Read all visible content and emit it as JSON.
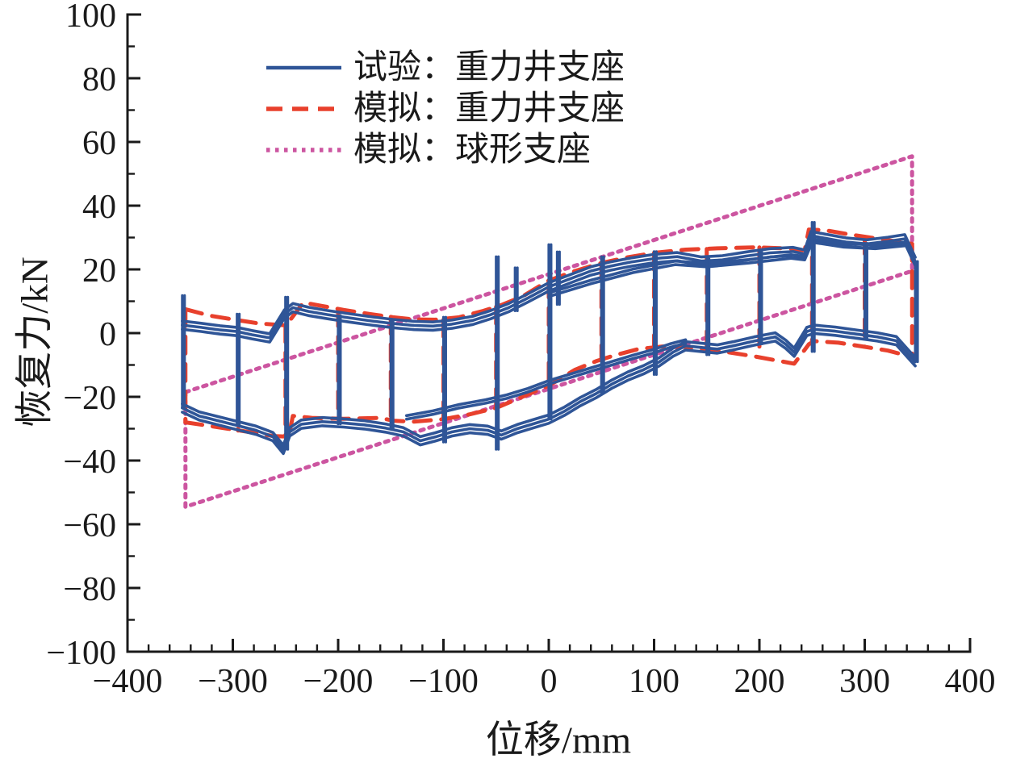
{
  "chart_data": {
    "type": "line",
    "title": "",
    "xlabel": "位移/mm",
    "ylabel": "恢复力/kN",
    "xlim": [
      -400,
      400
    ],
    "ylim": [
      -100,
      100
    ],
    "x_major_ticks": [
      -400,
      -300,
      -200,
      -100,
      0,
      100,
      200,
      300,
      400
    ],
    "x_minor_step": 20,
    "y_major_ticks": [
      -100,
      -80,
      -60,
      -40,
      -20,
      0,
      20,
      40,
      60,
      80,
      100
    ],
    "y_minor_step": 10,
    "grid": false,
    "legend_position": "upper-left-inside",
    "colors": {
      "test_blue": "#2f5597",
      "sim_red": "#e8402c",
      "sim_pink": "#cc55a0",
      "axis": "#1a1a1a",
      "background": "#ffffff"
    },
    "legend": [
      {
        "label": "试验：重力井支座",
        "color_key": "test_blue",
        "style": "solid"
      },
      {
        "label": "模拟：重力井支座",
        "color_key": "sim_red",
        "style": "dashed"
      },
      {
        "label": "模拟：球形支座",
        "color_key": "sim_pink",
        "style": "dotted"
      }
    ],
    "series": [
      {
        "name": "sim-spherical-bearing-loop",
        "color_key": "sim_pink",
        "style": "dotted",
        "points": [
          [
            -345,
            -18.5
          ],
          [
            345,
            55.5
          ],
          [
            345,
            19.5
          ],
          [
            -345,
            -54.5
          ],
          [
            -345,
            -18.5
          ]
        ]
      },
      {
        "name": "sim-gravity-well-upper-envelope",
        "color_key": "sim_red",
        "style": "dashed",
        "points": [
          [
            -345,
            7.5
          ],
          [
            -322,
            5.5
          ],
          [
            -300,
            4.3
          ],
          [
            -275,
            3
          ],
          [
            -252,
            2.5
          ],
          [
            -247,
            3.5
          ],
          [
            -233,
            9.6
          ],
          [
            -215,
            8.5
          ],
          [
            -195,
            7.3
          ],
          [
            -170,
            6
          ],
          [
            -148,
            5
          ],
          [
            -128,
            4.3
          ],
          [
            -108,
            4.2
          ],
          [
            -85,
            5
          ],
          [
            -62,
            7
          ],
          [
            -45,
            8.8
          ],
          [
            -25,
            11.5
          ],
          [
            0,
            16.5
          ],
          [
            25,
            19.5
          ],
          [
            50,
            22
          ],
          [
            75,
            23.8
          ],
          [
            100,
            25.2
          ],
          [
            130,
            26.2
          ],
          [
            160,
            26.6
          ],
          [
            195,
            26.9
          ],
          [
            225,
            26.6
          ],
          [
            243,
            26
          ],
          [
            247,
            32.5
          ],
          [
            262,
            32.3
          ],
          [
            285,
            31
          ],
          [
            305,
            30
          ],
          [
            325,
            29
          ],
          [
            345,
            28
          ]
        ]
      },
      {
        "name": "sim-gravity-well-lower-envelope",
        "color_key": "sim_red",
        "style": "dashed",
        "points": [
          [
            -345,
            -28
          ],
          [
            -325,
            -29
          ],
          [
            -305,
            -30
          ],
          [
            -285,
            -31
          ],
          [
            -262,
            -32.3
          ],
          [
            -247,
            -32.5
          ],
          [
            -243,
            -26
          ],
          [
            -225,
            -26.6
          ],
          [
            -195,
            -26.9
          ],
          [
            -160,
            -26.6
          ],
          [
            -148,
            -27.5
          ],
          [
            -128,
            -27.8
          ],
          [
            -100,
            -27
          ],
          [
            -75,
            -25.5
          ],
          [
            -50,
            -23.5
          ],
          [
            -25,
            -20
          ],
          [
            0,
            -16.5
          ],
          [
            25,
            -11.5
          ],
          [
            45,
            -8.8
          ],
          [
            62,
            -7
          ],
          [
            85,
            -5
          ],
          [
            108,
            -4.2
          ],
          [
            128,
            -4.3
          ],
          [
            148,
            -5
          ],
          [
            170,
            -6
          ],
          [
            195,
            -7.3
          ],
          [
            215,
            -8.5
          ],
          [
            233,
            -9.6
          ],
          [
            247,
            -3.5
          ],
          [
            252,
            -2.5
          ],
          [
            275,
            -3
          ],
          [
            300,
            -4.3
          ],
          [
            322,
            -5.5
          ],
          [
            345,
            -7.5
          ]
        ]
      },
      {
        "name": "sim-gravity-well-reversal-drops",
        "color_key": "sim_red",
        "style": "dashed",
        "segments": [
          [
            -345,
            7.5,
            -28
          ],
          [
            -295,
            4.4,
            -30.6
          ],
          [
            -250,
            2.5,
            -32.5
          ],
          [
            -200,
            7.5,
            -26.7
          ],
          [
            -150,
            5.1,
            -27.5
          ],
          [
            -100,
            4.2,
            -27
          ],
          [
            -50,
            8.3,
            -23.5
          ],
          [
            0,
            16.5,
            -16.5
          ],
          [
            50,
            22,
            -8.5
          ],
          [
            100,
            25.2,
            -4.2
          ],
          [
            150,
            26.4,
            -5.2
          ],
          [
            200,
            26.9,
            -7.5
          ],
          [
            250,
            32.4,
            -2.5
          ],
          [
            300,
            30.2,
            -4.3
          ],
          [
            345,
            28,
            -7.5
          ]
        ]
      },
      {
        "name": "test-gravity-well-upper-envelope",
        "color_key": "test_blue",
        "style": "solid",
        "cycle_offsets_kN": [
          0,
          1.3,
          -1.3
        ],
        "points": [
          [
            -348,
            2.5
          ],
          [
            -330,
            1.8
          ],
          [
            -312,
            1
          ],
          [
            -296,
            0.5
          ],
          [
            -282,
            -0.5
          ],
          [
            -265,
            -1.5
          ],
          [
            -251,
            6
          ],
          [
            -243,
            8
          ],
          [
            -228,
            6.8
          ],
          [
            -210,
            5.8
          ],
          [
            -190,
            4.8
          ],
          [
            -168,
            3.8
          ],
          [
            -148,
            3
          ],
          [
            -128,
            2.4
          ],
          [
            -110,
            2.2
          ],
          [
            -92,
            2.8
          ],
          [
            -72,
            4
          ],
          [
            -55,
            5.8
          ],
          [
            -38,
            8
          ],
          [
            -20,
            11
          ],
          [
            0,
            14.5
          ],
          [
            20,
            17
          ],
          [
            40,
            19.5
          ],
          [
            58,
            21
          ],
          [
            78,
            22.3
          ],
          [
            100,
            23.4
          ],
          [
            122,
            24
          ],
          [
            145,
            22.6
          ],
          [
            165,
            23
          ],
          [
            188,
            24.2
          ],
          [
            210,
            25.2
          ],
          [
            232,
            25.6
          ],
          [
            243,
            24.8
          ],
          [
            249,
            30.6
          ],
          [
            262,
            29.8
          ],
          [
            282,
            28.6
          ],
          [
            302,
            28
          ],
          [
            322,
            28.8
          ],
          [
            338,
            29.6
          ],
          [
            348,
            22.5
          ]
        ]
      },
      {
        "name": "test-gravity-well-upper-inner-cycles",
        "color_key": "test_blue",
        "style": "solid",
        "cycle_offsets_kN": [
          0,
          1.1
        ],
        "points": [
          [
            0,
            11.5
          ],
          [
            40,
            15.5
          ],
          [
            80,
            19
          ],
          [
            120,
            21.5
          ],
          [
            150,
            20.8
          ],
          [
            190,
            22
          ],
          [
            230,
            23.5
          ],
          [
            243,
            23
          ],
          [
            250,
            28.5
          ],
          [
            280,
            27
          ],
          [
            310,
            26.5
          ],
          [
            340,
            27.5
          ]
        ]
      },
      {
        "name": "test-gravity-well-lower-envelope",
        "color_key": "test_blue",
        "style": "solid",
        "cycle_offsets_kN": [
          0,
          1.3,
          -1.3
        ],
        "points": [
          [
            -348,
            -23.5
          ],
          [
            -332,
            -26
          ],
          [
            -314,
            -27.5
          ],
          [
            -296,
            -29
          ],
          [
            -278,
            -30.5
          ],
          [
            -262,
            -32.5
          ],
          [
            -252,
            -36.5
          ],
          [
            -246,
            -31
          ],
          [
            -235,
            -28.6
          ],
          [
            -215,
            -27.8
          ],
          [
            -195,
            -28.2
          ],
          [
            -175,
            -28.8
          ],
          [
            -155,
            -29.8
          ],
          [
            -138,
            -31
          ],
          [
            -122,
            -33.8
          ],
          [
            -108,
            -32.6
          ],
          [
            -92,
            -31
          ],
          [
            -75,
            -30
          ],
          [
            -58,
            -30.5
          ],
          [
            -45,
            -32
          ],
          [
            -30,
            -30
          ],
          [
            -15,
            -28.5
          ],
          [
            0,
            -27
          ],
          [
            15,
            -24.5
          ],
          [
            30,
            -21.5
          ],
          [
            45,
            -19
          ],
          [
            60,
            -16
          ],
          [
            75,
            -13.5
          ],
          [
            90,
            -11.5
          ],
          [
            105,
            -9
          ],
          [
            118,
            -6
          ],
          [
            130,
            -4
          ],
          [
            145,
            -4.5
          ],
          [
            160,
            -5
          ],
          [
            175,
            -4
          ],
          [
            195,
            -2.5
          ],
          [
            215,
            -1.2
          ],
          [
            225,
            -3.5
          ],
          [
            233,
            -6
          ],
          [
            245,
            0.5
          ],
          [
            252,
            1.2
          ],
          [
            272,
            0.6
          ],
          [
            292,
            -0.3
          ],
          [
            312,
            -1.2
          ],
          [
            330,
            -2.4
          ],
          [
            348,
            -9
          ]
        ]
      },
      {
        "name": "test-gravity-well-lower-inner-cycles",
        "color_key": "test_blue",
        "style": "solid",
        "cycle_offsets_kN": [
          0,
          1.1
        ],
        "points": [
          [
            -135,
            -27
          ],
          [
            -110,
            -25.5
          ],
          [
            -85,
            -23.5
          ],
          [
            -60,
            -22
          ],
          [
            -40,
            -20.5
          ],
          [
            -20,
            -18.5
          ],
          [
            0,
            -16
          ],
          [
            20,
            -14
          ],
          [
            40,
            -12
          ],
          [
            60,
            -10
          ],
          [
            80,
            -8
          ],
          [
            100,
            -6.2
          ],
          [
            115,
            -4.5
          ],
          [
            130,
            -3.2
          ]
        ]
      },
      {
        "name": "test-gravity-well-reversal-spikes",
        "color_key": "test_blue",
        "style": "solid",
        "cycle_offsets_mm": [
          0,
          2.2
        ],
        "segments": [
          [
            -348,
            11.8,
            -23.5
          ],
          [
            -296,
            6,
            -29
          ],
          [
            -250,
            11.3,
            -36.5
          ],
          [
            -200,
            5.5,
            -28.5
          ],
          [
            -150,
            4,
            -30
          ],
          [
            -100,
            5,
            -34.2
          ],
          [
            -50,
            24,
            -36.5
          ],
          [
            -32,
            20.5,
            7
          ],
          [
            0,
            27.8,
            -27
          ],
          [
            8,
            25.5,
            9
          ],
          [
            50,
            24,
            -18.8
          ],
          [
            100,
            25.6,
            -13
          ],
          [
            150,
            23.3,
            -6.8
          ],
          [
            200,
            25.8,
            -3.4
          ],
          [
            250,
            34.8,
            -5.8
          ],
          [
            300,
            28.2,
            -1.8
          ],
          [
            348,
            22.5,
            -9
          ]
        ]
      }
    ]
  }
}
